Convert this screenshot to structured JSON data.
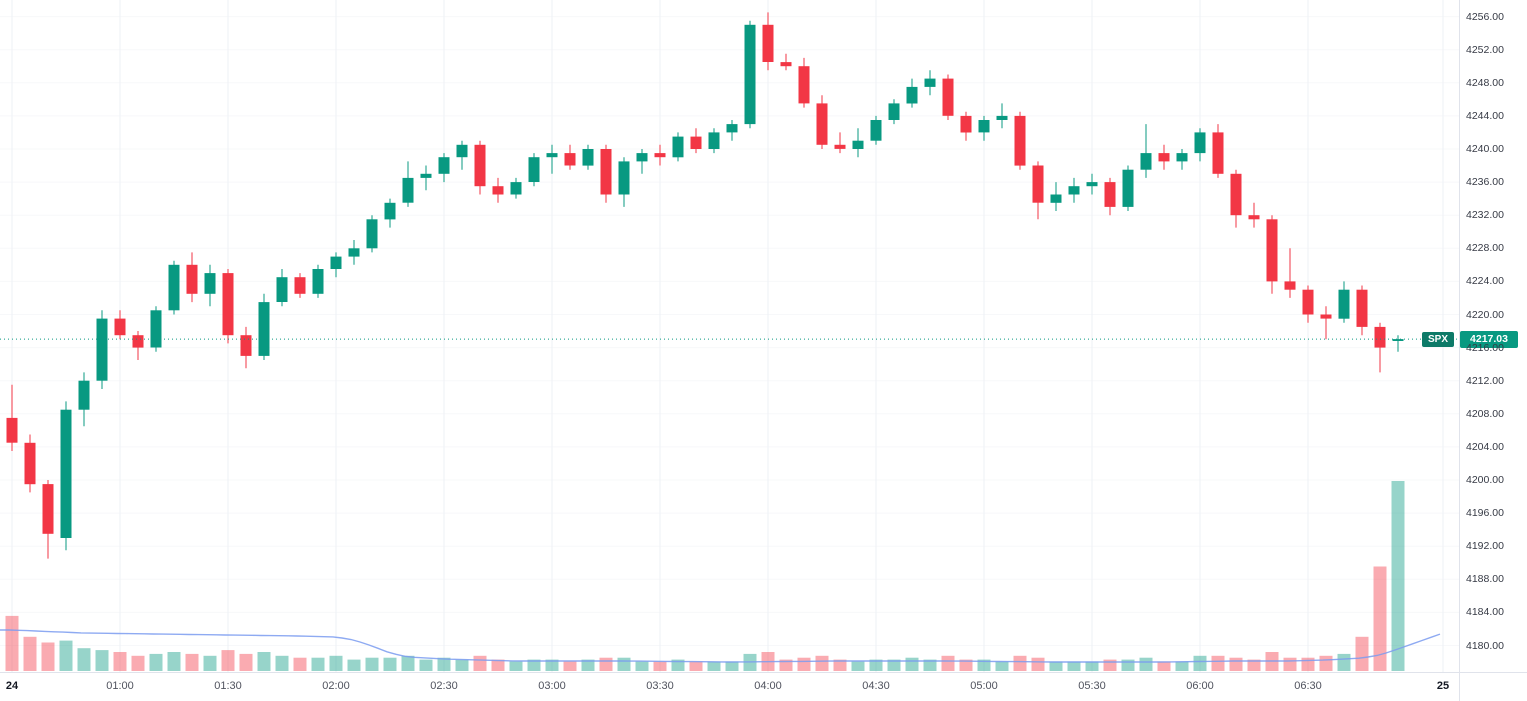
{
  "symbol": "SPX",
  "last_price": "4217.03",
  "colors": {
    "up": "#089981",
    "down": "#f23645",
    "vol_up": "rgba(8,153,129,0.42)",
    "vol_down": "rgba(242,54,69,0.42)",
    "ma_line": "#7a9bf0",
    "price_line": "#089981",
    "price_badge_bg": "#089981",
    "symbol_tag_bg": "#0d7a68",
    "grid_vertical": "#eef1f6",
    "grid_horizontal": "#f7f8fa",
    "axis_text": "#363a45",
    "axis_border": "#e0e3eb"
  },
  "chart_data": {
    "type": "candlestick",
    "title": "SPX 5-minute candlestick chart with volume and volume moving average",
    "legend_position": "none",
    "grid": true,
    "ylim": [
      4176.8,
      4258.0
    ],
    "y_tick_labels": [
      "4256.00",
      "4252.00",
      "4248.00",
      "4244.00",
      "4240.00",
      "4236.00",
      "4232.00",
      "4228.00",
      "4224.00",
      "4220.00",
      "4216.00",
      "4212.00",
      "4208.00",
      "4204.00",
      "4200.00",
      "4196.00",
      "4192.00",
      "4188.00",
      "4184.00",
      "4180.00"
    ],
    "y_tick_values": [
      4256,
      4252,
      4248,
      4244,
      4240,
      4236,
      4232,
      4228,
      4224,
      4220,
      4216,
      4212,
      4208,
      4204,
      4200,
      4196,
      4192,
      4188,
      4184,
      4180
    ],
    "x_ticks": [
      {
        "label": "24",
        "i": 0,
        "day": true
      },
      {
        "label": "01:00",
        "i": 6
      },
      {
        "label": "01:30",
        "i": 12
      },
      {
        "label": "02:00",
        "i": 18
      },
      {
        "label": "02:30",
        "i": 24
      },
      {
        "label": "03:00",
        "i": 30
      },
      {
        "label": "03:30",
        "i": 36
      },
      {
        "label": "04:00",
        "i": 42
      },
      {
        "label": "04:30",
        "i": 48
      },
      {
        "label": "05:00",
        "i": 54
      },
      {
        "label": "05:30",
        "i": 60
      },
      {
        "label": "06:00",
        "i": 66
      },
      {
        "label": "06:30",
        "i": 72
      },
      {
        "label": "25",
        "i": 79.5,
        "day": true
      }
    ],
    "last_price": 4217.03,
    "candles_format": [
      "open",
      "high",
      "low",
      "close",
      "volume_rel"
    ],
    "candles": [
      [
        4207.5,
        4211.5,
        4203.5,
        4204.5,
        29
      ],
      [
        4204.5,
        4205.5,
        4198.5,
        4199.5,
        18
      ],
      [
        4199.5,
        4200.0,
        4190.5,
        4193.5,
        15
      ],
      [
        4193.0,
        4209.5,
        4191.5,
        4208.5,
        16
      ],
      [
        4208.5,
        4213.0,
        4206.5,
        4212.0,
        12
      ],
      [
        4212.0,
        4220.5,
        4211.0,
        4219.5,
        11
      ],
      [
        4219.5,
        4220.5,
        4217.0,
        4217.5,
        10
      ],
      [
        4217.5,
        4218.0,
        4214.5,
        4216.0,
        8
      ],
      [
        4216.0,
        4221.0,
        4215.5,
        4220.5,
        9
      ],
      [
        4220.5,
        4226.5,
        4220.0,
        4226.0,
        10
      ],
      [
        4226.0,
        4227.5,
        4221.5,
        4222.5,
        9
      ],
      [
        4222.5,
        4226.0,
        4221.0,
        4225.0,
        8
      ],
      [
        4225.0,
        4225.5,
        4216.5,
        4217.5,
        11
      ],
      [
        4217.5,
        4218.5,
        4213.5,
        4215.0,
        9
      ],
      [
        4215.0,
        4222.5,
        4214.5,
        4221.5,
        10
      ],
      [
        4221.5,
        4225.5,
        4221.0,
        4224.5,
        8
      ],
      [
        4224.5,
        4225.0,
        4222.0,
        4222.5,
        7
      ],
      [
        4222.5,
        4226.0,
        4222.0,
        4225.5,
        7
      ],
      [
        4225.5,
        4227.5,
        4224.5,
        4227.0,
        8
      ],
      [
        4227.0,
        4229.0,
        4226.0,
        4228.0,
        6
      ],
      [
        4228.0,
        4232.0,
        4227.5,
        4231.5,
        7
      ],
      [
        4231.5,
        4234.0,
        4230.5,
        4233.5,
        7
      ],
      [
        4233.5,
        4238.5,
        4233.0,
        4236.5,
        8
      ],
      [
        4236.5,
        4238.0,
        4235.0,
        4237.0,
        6
      ],
      [
        4237.0,
        4239.5,
        4236.0,
        4239.0,
        7
      ],
      [
        4239.0,
        4241.0,
        4237.5,
        4240.5,
        6
      ],
      [
        4240.5,
        4241.0,
        4234.5,
        4235.5,
        8
      ],
      [
        4235.5,
        4236.5,
        4233.5,
        4234.5,
        6
      ],
      [
        4234.5,
        4236.5,
        4234.0,
        4236.0,
        5
      ],
      [
        4236.0,
        4239.5,
        4235.5,
        4239.0,
        6
      ],
      [
        4239.0,
        4240.5,
        4237.0,
        4239.5,
        6
      ],
      [
        4239.5,
        4240.5,
        4237.5,
        4238.0,
        5
      ],
      [
        4238.0,
        4240.5,
        4237.5,
        4240.0,
        6
      ],
      [
        4240.0,
        4240.5,
        4233.5,
        4234.5,
        7
      ],
      [
        4234.5,
        4239.0,
        4233.0,
        4238.5,
        7
      ],
      [
        4238.5,
        4240.0,
        4237.0,
        4239.5,
        5
      ],
      [
        4239.5,
        4240.5,
        4238.0,
        4239.0,
        5
      ],
      [
        4239.0,
        4242.0,
        4238.5,
        4241.5,
        6
      ],
      [
        4241.5,
        4242.5,
        4239.5,
        4240.0,
        5
      ],
      [
        4240.0,
        4242.5,
        4239.5,
        4242.0,
        5
      ],
      [
        4242.0,
        4243.5,
        4241.0,
        4243.0,
        5
      ],
      [
        4243.0,
        4255.5,
        4242.5,
        4255.0,
        9
      ],
      [
        4255.0,
        4256.5,
        4249.5,
        4250.5,
        10
      ],
      [
        4250.5,
        4251.5,
        4249.5,
        4250.0,
        6
      ],
      [
        4250.0,
        4251.0,
        4245.0,
        4245.5,
        7
      ],
      [
        4245.5,
        4246.5,
        4240.0,
        4240.5,
        8
      ],
      [
        4240.5,
        4242.0,
        4239.5,
        4240.0,
        6
      ],
      [
        4240.0,
        4242.5,
        4239.0,
        4241.0,
        5
      ],
      [
        4241.0,
        4244.0,
        4240.5,
        4243.5,
        6
      ],
      [
        4243.5,
        4246.0,
        4243.0,
        4245.5,
        6
      ],
      [
        4245.5,
        4248.5,
        4245.0,
        4247.5,
        7
      ],
      [
        4247.5,
        4249.5,
        4246.5,
        4248.5,
        6
      ],
      [
        4248.5,
        4249.0,
        4243.5,
        4244.0,
        8
      ],
      [
        4244.0,
        4244.5,
        4241.0,
        4242.0,
        6
      ],
      [
        4242.0,
        4244.0,
        4241.0,
        4243.5,
        6
      ],
      [
        4243.5,
        4245.5,
        4242.5,
        4244.0,
        5
      ],
      [
        4244.0,
        4244.5,
        4237.5,
        4238.0,
        8
      ],
      [
        4238.0,
        4238.5,
        4231.5,
        4233.5,
        7
      ],
      [
        4233.5,
        4236.0,
        4232.5,
        4234.5,
        5
      ],
      [
        4234.5,
        4236.5,
        4233.5,
        4235.5,
        5
      ],
      [
        4235.5,
        4237.0,
        4234.5,
        4236.0,
        5
      ],
      [
        4236.0,
        4236.5,
        4232.0,
        4233.0,
        6
      ],
      [
        4233.0,
        4238.0,
        4232.5,
        4237.5,
        6
      ],
      [
        4237.5,
        4243.0,
        4236.5,
        4239.5,
        7
      ],
      [
        4239.5,
        4240.5,
        4237.5,
        4238.5,
        5
      ],
      [
        4238.5,
        4240.0,
        4237.5,
        4239.5,
        5
      ],
      [
        4239.5,
        4242.5,
        4238.5,
        4242.0,
        8
      ],
      [
        4242.0,
        4243.0,
        4236.5,
        4237.0,
        8
      ],
      [
        4237.0,
        4237.5,
        4230.5,
        4232.0,
        7
      ],
      [
        4232.0,
        4233.5,
        4230.5,
        4231.5,
        6
      ],
      [
        4231.5,
        4232.0,
        4222.5,
        4224.0,
        10
      ],
      [
        4224.0,
        4228.0,
        4222.0,
        4223.0,
        7
      ],
      [
        4223.0,
        4223.5,
        4219.0,
        4220.0,
        7
      ],
      [
        4220.0,
        4221.0,
        4217.0,
        4219.5,
        8
      ],
      [
        4219.5,
        4224.0,
        4219.0,
        4223.0,
        9
      ],
      [
        4223.0,
        4223.5,
        4217.5,
        4218.5,
        18
      ],
      [
        4218.5,
        4219.0,
        4213.0,
        4216.0,
        55
      ],
      [
        4216.8,
        4217.5,
        4215.5,
        4217.03,
        100
      ]
    ],
    "volume_ma_points": [
      [
        0,
        41
      ],
      [
        4,
        38
      ],
      [
        8,
        37
      ],
      [
        12,
        36
      ],
      [
        16,
        35
      ],
      [
        18,
        34
      ],
      [
        19,
        31
      ],
      [
        20,
        25
      ],
      [
        21,
        18
      ],
      [
        22,
        14
      ],
      [
        24,
        12
      ],
      [
        28,
        10
      ],
      [
        34,
        10
      ],
      [
        40,
        9
      ],
      [
        46,
        10
      ],
      [
        52,
        10
      ],
      [
        58,
        9
      ],
      [
        64,
        9
      ],
      [
        68,
        10
      ],
      [
        71,
        10
      ],
      [
        73,
        11
      ],
      [
        75,
        13
      ],
      [
        76,
        16
      ],
      [
        77,
        22
      ],
      [
        79.5,
        38
      ]
    ]
  }
}
